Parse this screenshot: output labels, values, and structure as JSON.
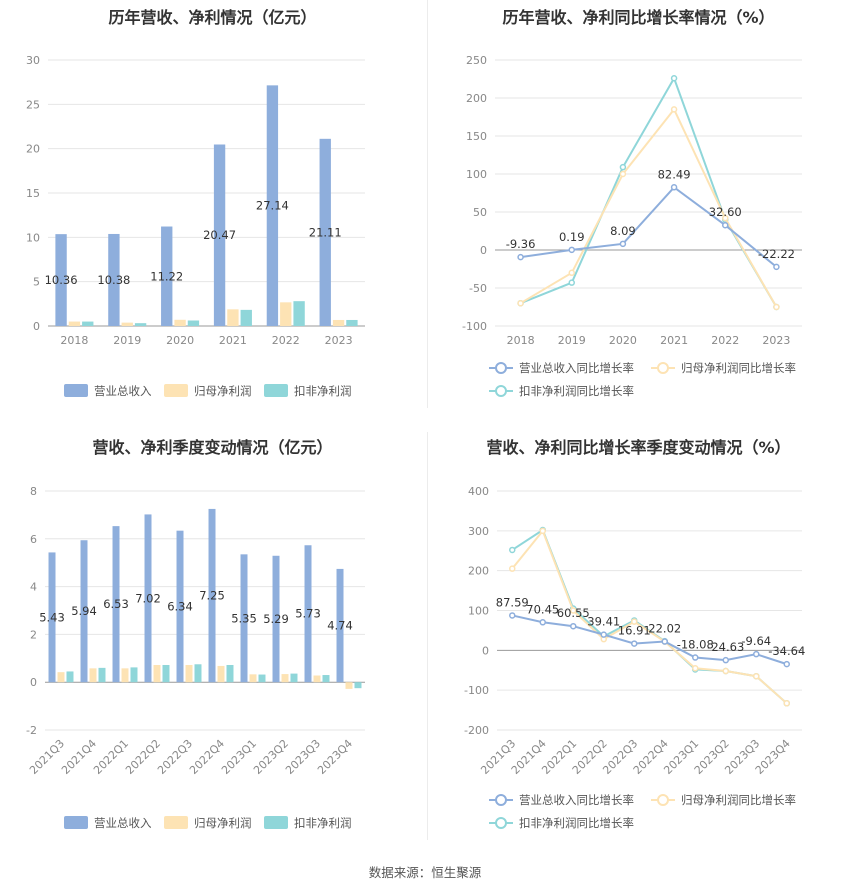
{
  "footer": {
    "source": "数据来源：恒生聚源"
  },
  "chart_data": [
    {
      "id": "annual_rev_profit",
      "type": "bar",
      "title": "历年营收、净利情况（亿元）",
      "categories": [
        "2018",
        "2019",
        "2020",
        "2021",
        "2022",
        "2023"
      ],
      "series": [
        {
          "name": "营业总收入",
          "color": "#8eaedc",
          "values": [
            10.36,
            10.38,
            11.22,
            20.47,
            27.14,
            21.11
          ],
          "labels": [
            "10.36",
            "10.38",
            "11.22",
            "20.47",
            "27.14",
            "21.11"
          ]
        },
        {
          "name": "归母净利润",
          "color": "#fde3b4",
          "values": [
            0.5,
            0.38,
            0.7,
            1.88,
            2.67,
            0.68
          ]
        },
        {
          "name": "扣非净利润",
          "color": "#8fd6d9",
          "values": [
            0.5,
            0.32,
            0.62,
            1.82,
            2.8,
            0.68
          ]
        }
      ],
      "yticks": [
        0,
        5,
        10,
        15,
        20,
        25,
        30
      ],
      "ylim": [
        0,
        30
      ],
      "legend": "bottom"
    },
    {
      "id": "annual_growth",
      "type": "line",
      "title": "历年营收、净利同比增长率情况（%）",
      "categories": [
        "2018",
        "2019",
        "2020",
        "2021",
        "2022",
        "2023"
      ],
      "series": [
        {
          "name": "营业总收入同比增长率",
          "color": "#8eaedc",
          "values": [
            -9.36,
            0.19,
            8.09,
            82.49,
            32.6,
            -22.22
          ],
          "labels": [
            "-9.36",
            "0.19",
            "8.09",
            "82.49",
            "32.60",
            "-22.22"
          ]
        },
        {
          "name": "归母净利润同比增长率",
          "color": "#fde3b4",
          "values": [
            -70,
            -30,
            100,
            185,
            42,
            -75
          ]
        },
        {
          "name": "扣非净利润同比增长率",
          "color": "#8fd6d9",
          "values": [
            -70,
            -43,
            109,
            226,
            40,
            -75
          ]
        }
      ],
      "yticks": [
        -100,
        -50,
        0,
        50,
        100,
        150,
        200,
        250
      ],
      "ylim": [
        -100,
        250
      ],
      "legend": "bottom"
    },
    {
      "id": "quarterly_rev_profit",
      "type": "bar",
      "title": "营收、净利季度变动情况（亿元）",
      "categories": [
        "2021Q3",
        "2021Q4",
        "2022Q1",
        "2022Q2",
        "2022Q3",
        "2022Q4",
        "2023Q1",
        "2023Q2",
        "2023Q3",
        "2023Q4"
      ],
      "series": [
        {
          "name": "营业总收入",
          "color": "#8eaedc",
          "values": [
            5.43,
            5.94,
            6.53,
            7.02,
            6.34,
            7.25,
            5.35,
            5.29,
            5.73,
            4.74
          ],
          "labels": [
            "5.43",
            "5.94",
            "6.53",
            "7.02",
            "6.34",
            "7.25",
            "5.35",
            "5.29",
            "5.73",
            "4.74"
          ]
        },
        {
          "name": "归母净利润",
          "color": "#fde3b4",
          "values": [
            0.42,
            0.58,
            0.58,
            0.72,
            0.72,
            0.68,
            0.33,
            0.34,
            0.28,
            -0.28
          ]
        },
        {
          "name": "扣非净利润",
          "color": "#8fd6d9",
          "values": [
            0.45,
            0.6,
            0.62,
            0.72,
            0.75,
            0.72,
            0.32,
            0.36,
            0.3,
            -0.25
          ]
        }
      ],
      "yticks": [
        -2,
        0,
        2,
        4,
        6,
        8
      ],
      "ylim": [
        -2,
        8
      ],
      "legend": "bottom"
    },
    {
      "id": "quarterly_growth",
      "type": "line",
      "title": "营收、净利同比增长率季度变动情况（%）",
      "categories": [
        "2021Q3",
        "2021Q4",
        "2022Q1",
        "2022Q2",
        "2022Q3",
        "2022Q4",
        "2023Q1",
        "2023Q2",
        "2023Q3",
        "2023Q4"
      ],
      "series": [
        {
          "name": "营业总收入同比增长率",
          "color": "#8eaedc",
          "values": [
            87.59,
            70.45,
            60.55,
            39.41,
            16.91,
            22.02,
            -18.08,
            -24.63,
            -9.64,
            -34.64
          ],
          "labels": [
            "87.59",
            "70.45",
            "60.55",
            "39.41",
            "16.91",
            "22.02",
            "-18.08",
            "-24.63",
            "-9.64",
            "-34.64"
          ]
        },
        {
          "name": "归母净利润同比增长率",
          "color": "#fde3b4",
          "values": [
            205,
            300,
            100,
            28,
            72,
            22,
            -45,
            -52,
            -65,
            -133
          ]
        },
        {
          "name": "扣非净利润同比增长率",
          "color": "#8fd6d9",
          "values": [
            252,
            302,
            105,
            35,
            75,
            23,
            -48,
            -52,
            -65,
            -133
          ]
        }
      ],
      "yticks": [
        -200,
        -100,
        0,
        100,
        200,
        300,
        400
      ],
      "ylim": [
        -200,
        400
      ],
      "legend": "bottom"
    }
  ]
}
